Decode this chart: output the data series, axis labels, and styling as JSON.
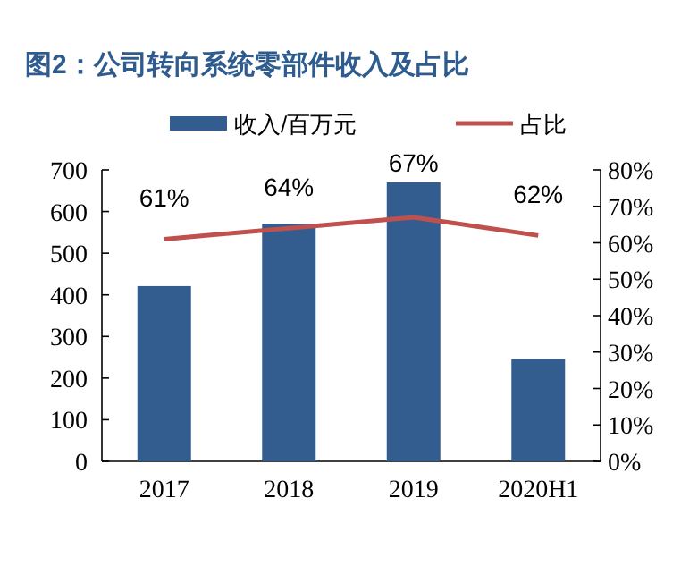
{
  "chart_data": {
    "type": "bar",
    "title": "图2：公司转向系统零部件收入及占比",
    "categories": [
      "2017",
      "2018",
      "2019",
      "2020H1"
    ],
    "series": [
      {
        "name": "收入/百万元",
        "color": "#335d8f",
        "values": [
          421,
          571,
          670,
          246
        ]
      },
      {
        "name": "占比",
        "type": "line",
        "axis": "y2",
        "color": "#c0504d",
        "values": [
          61,
          64,
          67,
          62
        ],
        "value_labels": [
          "61%",
          "64%",
          "67%",
          "62%"
        ]
      }
    ],
    "ylim": [
      0,
      700
    ],
    "yticks": [
      0,
      100,
      200,
      300,
      400,
      500,
      600,
      700
    ],
    "y2lim": [
      0,
      80
    ],
    "y2ticks": [
      {
        "value": 0,
        "label": "0%"
      },
      {
        "value": 10,
        "label": "10%"
      },
      {
        "value": 20,
        "label": "20%"
      },
      {
        "value": 30,
        "label": "30%"
      },
      {
        "value": 40,
        "label": "40%"
      },
      {
        "value": 50,
        "label": "50%"
      },
      {
        "value": 60,
        "label": "60%"
      },
      {
        "value": 70,
        "label": "70%"
      },
      {
        "value": 80,
        "label": "80%"
      }
    ],
    "legend": "top",
    "grid": false,
    "marker": "none"
  }
}
